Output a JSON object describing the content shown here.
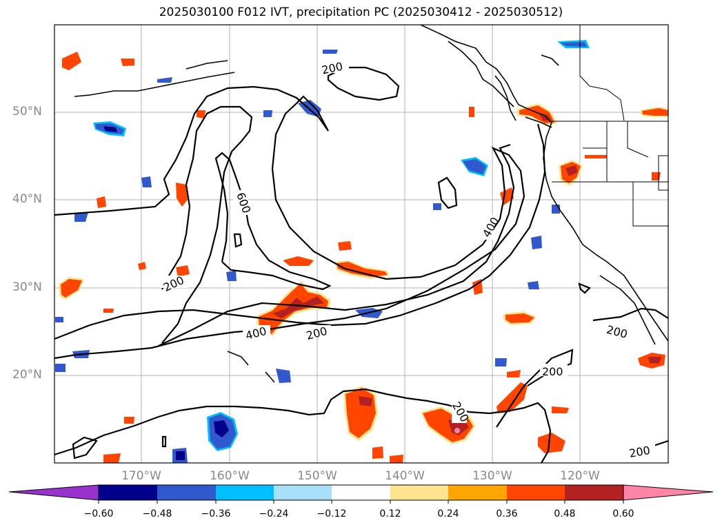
{
  "title": "2025030100 F012 IVT, precipitation PC (2025030412 - 2025030512)",
  "map": {
    "lat_labels": [
      "50°N",
      "40°N",
      "30°N",
      "20°N"
    ],
    "lon_labels": [
      "170°W",
      "160°W",
      "150°W",
      "140°W",
      "130°W",
      "120°W"
    ],
    "contour_labels": [
      "200",
      "200",
      "400",
      "200",
      "600",
      "400",
      "200",
      "200",
      "200",
      "200"
    ]
  },
  "colorbar": {
    "ticks": [
      "−0.60",
      "−0.48",
      "−0.36",
      "−0.24",
      "−0.12",
      "0.12",
      "0.24",
      "0.36",
      "0.48",
      "0.60"
    ],
    "colors": [
      "#9932cc",
      "#00008b",
      "#3158cc",
      "#00bfff",
      "#a8e0fa",
      "#ffffff",
      "#ffe58f",
      "#ffa500",
      "#ff4500",
      "#b22222",
      "#ff85a8"
    ]
  }
}
